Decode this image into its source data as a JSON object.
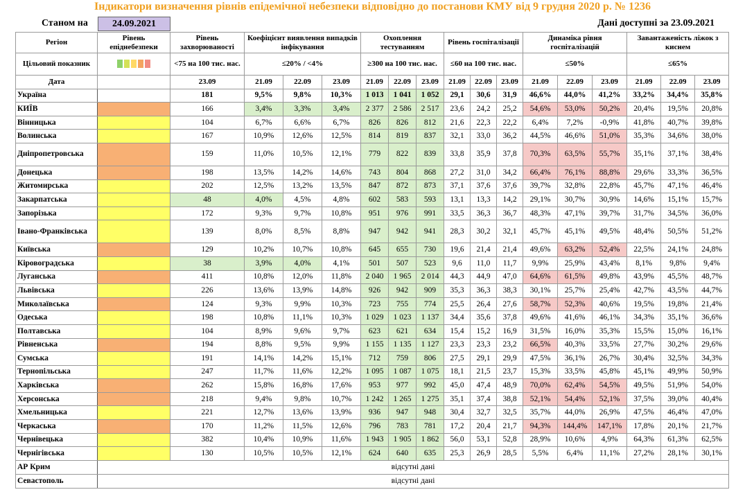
{
  "title": "Індикатори визначення рівнів епідемічної небезпеки відповідно до постанови КМУ від 9 грудня 2020 р. № 1236",
  "as_of_label": "Станом на",
  "as_of_date": "24.09.2021",
  "data_available": "Дані доступні за 23.09.2021",
  "header": {
    "region_titles": [
      "Регіон",
      "Цільовий показник",
      "Дата"
    ],
    "level": {
      "title": "Рівень епіднебезпеки",
      "legend": [
        "#8fd16a",
        "#d4e157",
        "#ffd966",
        "#f4a460",
        "#f28b82"
      ]
    },
    "groups": [
      {
        "title": "Рівень захворюваності",
        "target": "<75 на 100 тис. нас.",
        "dates": [
          "23.09"
        ]
      },
      {
        "title": "Коефіцієнт виявлення випадків інфікування",
        "target": "≤20% / <4%",
        "dates": [
          "21.09",
          "22.09",
          "23.09"
        ]
      },
      {
        "title": "Охоплення тестуванням",
        "target": "≥300 на 100 тис. нас.",
        "dates": [
          "21.09",
          "22.09",
          "23.09"
        ],
        "fill": "#d9efcb"
      },
      {
        "title": "Рівень госпіталізації",
        "target": "≤60 на 100 тис. нас.",
        "dates": [
          "21.09",
          "22.09",
          "23.09"
        ]
      },
      {
        "title": "Динаміка рівня госпіталізацій",
        "target": "≤50%",
        "dates": [
          "21.09",
          "22.09",
          "23.09"
        ]
      },
      {
        "title": "Завантаженість ліжок з киснем",
        "target": "≤65%",
        "dates": [
          "21.09",
          "22.09",
          "23.09"
        ]
      }
    ]
  },
  "rows": [
    {
      "region": "Україна",
      "cells": [
        "181",
        "9,5%",
        "9,8%",
        "10,3%",
        "1 013",
        "1 041",
        "1 052",
        "29,1",
        "30,6",
        "31,9",
        "46,6%",
        "44,0%",
        "41,2%",
        "33,2%",
        "34,4%",
        "35,8%"
      ]
    },
    {
      "region": "КИЇВ",
      "level": "#f8b074",
      "cells": [
        "166",
        {
          "text": "3,4%",
          "fill": "#d9efcb"
        },
        {
          "text": "3,3%",
          "fill": "#d9efcb"
        },
        {
          "text": "3,4%",
          "fill": "#d9efcb"
        },
        "2 377",
        "2 586",
        "2 517",
        "23,6",
        "24,2",
        "25,2",
        {
          "text": "54,6%",
          "fill": "#f6c9c7"
        },
        {
          "text": "53,0%",
          "fill": "#f6c9c7"
        },
        {
          "text": "50,2%",
          "fill": "#f6c9c7"
        },
        "20,4%",
        "19,5%",
        "20,8%"
      ]
    },
    {
      "region": "Вінницька",
      "level": "#ffff66",
      "cells": [
        "104",
        "6,7%",
        "6,6%",
        "6,7%",
        "826",
        "826",
        "812",
        "21,6",
        "22,3",
        "22,2",
        "6,4%",
        "7,2%",
        "-0,9%",
        "41,8%",
        "40,7%",
        "39,8%"
      ]
    },
    {
      "region": "Волинська",
      "level": "#ffff66",
      "cells": [
        "167",
        "10,9%",
        "12,6%",
        "12,5%",
        "814",
        "819",
        "837",
        "32,1",
        "33,0",
        "36,2",
        "44,5%",
        "46,6%",
        {
          "text": "51,0%",
          "fill": "#f6c9c7"
        },
        "35,3%",
        "34,6%",
        "38,0%"
      ]
    },
    {
      "region": "Дніпропетровська",
      "level": "#f8b074",
      "cells": [
        "159",
        "11,0%",
        "10,5%",
        "12,1%",
        "779",
        "822",
        "839",
        "33,8",
        "35,9",
        "37,8",
        {
          "text": "70,3%",
          "fill": "#f6c9c7"
        },
        {
          "text": "63,5%",
          "fill": "#f6c9c7"
        },
        {
          "text": "55,7%",
          "fill": "#f6c9c7"
        },
        "35,1%",
        "37,1%",
        "38,4%"
      ]
    },
    {
      "region": "Донецька",
      "level": "#f8b074",
      "cells": [
        "198",
        "13,5%",
        "14,2%",
        "14,6%",
        "743",
        "804",
        "868",
        "27,2",
        "31,0",
        "34,2",
        {
          "text": "66,4%",
          "fill": "#f6c9c7"
        },
        {
          "text": "76,1%",
          "fill": "#f6c9c7"
        },
        {
          "text": "88,8%",
          "fill": "#f6c9c7"
        },
        "29,6%",
        "33,3%",
        "36,5%"
      ]
    },
    {
      "region": "Житомирська",
      "level": "#ffff66",
      "cells": [
        "202",
        "12,5%",
        "13,2%",
        "13,5%",
        "847",
        "872",
        "873",
        "37,1",
        "37,6",
        "37,6",
        "39,7%",
        "32,8%",
        "22,8%",
        "45,7%",
        "47,1%",
        "46,4%"
      ]
    },
    {
      "region": "Закарпатська",
      "level": "#ffff66",
      "cells": [
        {
          "text": "48",
          "fill": "#d9efcb"
        },
        {
          "text": "4,0%",
          "fill": "#d9efcb"
        },
        "4,5%",
        "4,8%",
        "602",
        "583",
        "593",
        "13,1",
        "13,3",
        "14,2",
        "29,1%",
        "30,7%",
        "30,9%",
        "14,6%",
        "15,1%",
        "15,7%"
      ]
    },
    {
      "region": "Запорізька",
      "level": "#ffff66",
      "cells": [
        "172",
        "9,3%",
        "9,7%",
        "10,8%",
        "951",
        "976",
        "991",
        "33,5",
        "36,3",
        "36,7",
        "48,3%",
        "47,1%",
        "39,7%",
        "31,7%",
        "34,5%",
        "36,0%"
      ]
    },
    {
      "region": "Івано-Франківська",
      "level": "#ffff66",
      "cells": [
        "139",
        "8,0%",
        "8,5%",
        "8,8%",
        "947",
        "942",
        "941",
        "28,3",
        "30,2",
        "32,1",
        "45,7%",
        "45,1%",
        "49,5%",
        "48,4%",
        "50,5%",
        "51,2%"
      ]
    },
    {
      "region": "Київська",
      "level": "#f8b074",
      "cells": [
        "129",
        "10,2%",
        "10,7%",
        "10,8%",
        "645",
        "655",
        "730",
        "19,6",
        "21,4",
        "21,4",
        "49,6%",
        {
          "text": "63,2%",
          "fill": "#f6c9c7"
        },
        {
          "text": "52,4%",
          "fill": "#f6c9c7"
        },
        "22,5%",
        "24,1%",
        "24,8%"
      ]
    },
    {
      "region": "Кіровоградська",
      "level": "#ffff66",
      "cells": [
        {
          "text": "38",
          "fill": "#d9efcb"
        },
        {
          "text": "3,9%",
          "fill": "#d9efcb"
        },
        {
          "text": "4,0%",
          "fill": "#d9efcb"
        },
        "4,1%",
        "501",
        "507",
        "523",
        "9,6",
        "11,0",
        "11,7",
        "9,9%",
        "25,9%",
        "43,4%",
        "8,1%",
        "9,8%",
        "9,4%"
      ]
    },
    {
      "region": "Луганська",
      "level": "#f8b074",
      "cells": [
        "411",
        "10,8%",
        "12,0%",
        "11,8%",
        "2 040",
        "1 965",
        "2 014",
        "44,3",
        "44,9",
        "47,0",
        {
          "text": "64,6%",
          "fill": "#f6c9c7"
        },
        {
          "text": "61,5%",
          "fill": "#f6c9c7"
        },
        "49,8%",
        "43,9%",
        "45,5%",
        "48,7%"
      ]
    },
    {
      "region": "Львівська",
      "level": "#ffff66",
      "cells": [
        "226",
        "13,6%",
        "13,9%",
        "14,8%",
        "926",
        "942",
        "909",
        "35,3",
        "36,3",
        "38,3",
        "30,1%",
        "25,7%",
        "25,4%",
        "42,7%",
        "43,5%",
        "44,7%"
      ]
    },
    {
      "region": "Миколаївська",
      "level": "#f8b074",
      "cells": [
        "124",
        "9,3%",
        "9,9%",
        "10,3%",
        "723",
        "755",
        "774",
        "25,5",
        "26,4",
        "27,6",
        {
          "text": "58,7%",
          "fill": "#f6c9c7"
        },
        {
          "text": "52,3%",
          "fill": "#f6c9c7"
        },
        "40,6%",
        "19,5%",
        "19,8%",
        "21,4%"
      ]
    },
    {
      "region": "Одеська",
      "level": "#ffff66",
      "cells": [
        "198",
        "10,8%",
        "11,1%",
        "10,3%",
        "1 029",
        "1 023",
        "1 137",
        "34,4",
        "35,6",
        "37,8",
        "49,6%",
        "41,6%",
        "46,1%",
        "34,3%",
        "35,1%",
        "36,6%"
      ]
    },
    {
      "region": "Полтавська",
      "level": "#ffff66",
      "cells": [
        "104",
        "8,9%",
        "9,6%",
        "9,7%",
        "623",
        "621",
        "634",
        "15,4",
        "15,2",
        "16,9",
        "31,5%",
        "16,0%",
        "35,3%",
        "15,5%",
        "15,0%",
        "16,1%"
      ]
    },
    {
      "region": "Рівненська",
      "level": "#f8b074",
      "cells": [
        "194",
        "8,8%",
        "9,5%",
        "9,9%",
        "1 155",
        "1 135",
        "1 127",
        "23,3",
        "23,3",
        "23,2",
        {
          "text": "66,5%",
          "fill": "#f6c9c7"
        },
        "40,3%",
        "33,5%",
        "27,7%",
        "30,2%",
        "29,6%"
      ]
    },
    {
      "region": "Сумська",
      "level": "#ffff66",
      "cells": [
        "191",
        "14,1%",
        "14,2%",
        "15,1%",
        "712",
        "759",
        "806",
        "27,5",
        "29,1",
        "29,9",
        "47,5%",
        "36,1%",
        "26,7%",
        "30,4%",
        "32,5%",
        "34,3%"
      ]
    },
    {
      "region": "Тернопільська",
      "level": "#ffff66",
      "cells": [
        "247",
        "11,7%",
        "11,6%",
        "12,2%",
        "1 095",
        "1 087",
        "1 075",
        "18,1",
        "21,5",
        "23,7",
        "15,3%",
        "33,5%",
        "45,8%",
        "45,1%",
        "49,9%",
        "50,9%"
      ]
    },
    {
      "region": "Харківська",
      "level": "#f8b074",
      "cells": [
        "262",
        "15,8%",
        "16,8%",
        "17,6%",
        "953",
        "977",
        "992",
        "45,0",
        "47,4",
        "48,9",
        {
          "text": "70,0%",
          "fill": "#f6c9c7"
        },
        {
          "text": "62,4%",
          "fill": "#f6c9c7"
        },
        {
          "text": "54,5%",
          "fill": "#f6c9c7"
        },
        "49,5%",
        "51,9%",
        "54,0%"
      ]
    },
    {
      "region": "Херсонська",
      "level": "#f8b074",
      "cells": [
        "218",
        "9,4%",
        "9,8%",
        "10,7%",
        "1 242",
        "1 265",
        "1 275",
        "35,1",
        "37,4",
        "38,8",
        {
          "text": "52,1%",
          "fill": "#f6c9c7"
        },
        {
          "text": "54,4%",
          "fill": "#f6c9c7"
        },
        {
          "text": "52,1%",
          "fill": "#f6c9c7"
        },
        "37,5%",
        "39,0%",
        "40,4%"
      ]
    },
    {
      "region": "Хмельницька",
      "level": "#ffff66",
      "cells": [
        "221",
        "12,7%",
        "13,6%",
        "13,9%",
        "936",
        "947",
        "948",
        "30,4",
        "32,7",
        "32,5",
        "35,7%",
        "44,0%",
        "26,9%",
        "47,5%",
        "46,4%",
        "47,0%"
      ]
    },
    {
      "region": "Черкаська",
      "level": "#f8b074",
      "cells": [
        "170",
        "11,2%",
        "11,5%",
        "12,6%",
        "796",
        "783",
        "781",
        "17,2",
        "20,4",
        "21,7",
        {
          "text": "94,3%",
          "fill": "#f6c9c7"
        },
        {
          "text": "144,4%",
          "fill": "#f6c9c7"
        },
        {
          "text": "147,1%",
          "fill": "#f6c9c7"
        },
        "17,8%",
        "20,1%",
        "21,7%"
      ]
    },
    {
      "region": "Чернівецька",
      "level": "#ffff66",
      "cells": [
        "382",
        "10,4%",
        "10,9%",
        "11,6%",
        "1 943",
        "1 905",
        "1 862",
        "56,0",
        "53,1",
        "52,8",
        "28,9%",
        "10,6%",
        "4,9%",
        "64,3%",
        "61,3%",
        "62,5%"
      ]
    },
    {
      "region": "Чернігівська",
      "level": "#ffff66",
      "cells": [
        "130",
        "10,5%",
        "10,5%",
        "12,1%",
        "624",
        "640",
        "635",
        "25,3",
        "26,9",
        "28,5",
        "5,5%",
        "6,4%",
        "11,1%",
        "27,2%",
        "28,1%",
        "30,1%"
      ]
    }
  ],
  "missing": [
    {
      "region": "АР Крим",
      "text": "відсутні дані"
    },
    {
      "region": "Севастополь",
      "text": "відсутні дані"
    }
  ]
}
